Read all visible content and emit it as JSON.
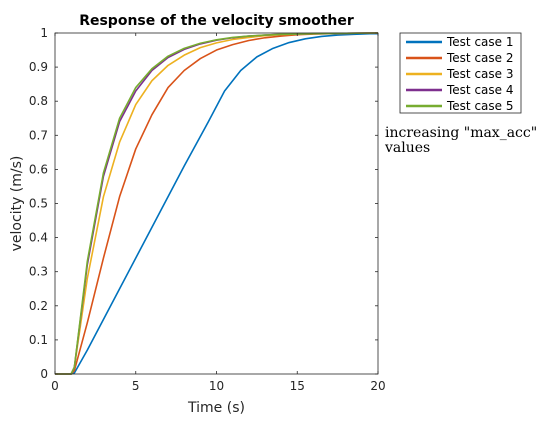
{
  "chart_data": {
    "type": "line",
    "title": "Response of the velocity smoother",
    "xlabel": "Time (s)",
    "ylabel": "velocity (m/s)",
    "xlim": [
      0,
      20
    ],
    "ylim": [
      0,
      1
    ],
    "xticks": [
      0,
      5,
      10,
      15,
      20
    ],
    "yticks": [
      0,
      0.1,
      0.2,
      0.3,
      0.4,
      0.5,
      0.6,
      0.7,
      0.8,
      0.9,
      1
    ],
    "xtick_labels": [
      "0",
      "5",
      "10",
      "15",
      "20"
    ],
    "ytick_labels": [
      "0",
      "0.1",
      "0.2",
      "0.3",
      "0.4",
      "0.5",
      "0.6",
      "0.7",
      "0.8",
      "0.9",
      "1"
    ],
    "grid": false,
    "legend_position": "outside-top-right",
    "annotation": {
      "line1": "increasing  \"max_acc\"",
      "line2": "values"
    },
    "series": [
      {
        "name": "Test case 1",
        "color": "#0072BD",
        "x": [
          0,
          1,
          1.2,
          2,
          4,
          6,
          8,
          9.5,
          10.5,
          11.5,
          12.5,
          13.5,
          14.5,
          15.5,
          16.5,
          17.5,
          18.5,
          19.5,
          20
        ],
        "y": [
          0,
          0,
          0.003,
          0.07,
          0.25,
          0.43,
          0.61,
          0.74,
          0.83,
          0.89,
          0.93,
          0.955,
          0.972,
          0.983,
          0.99,
          0.994,
          0.996,
          0.998,
          0.998
        ]
      },
      {
        "name": "Test case 2",
        "color": "#D95319",
        "x": [
          0,
          1,
          1.2,
          2,
          3,
          4,
          5,
          6,
          7,
          8,
          9,
          10,
          11,
          12,
          13,
          14,
          15,
          16,
          17,
          18,
          20
        ],
        "y": [
          0,
          0,
          0.01,
          0.15,
          0.34,
          0.52,
          0.66,
          0.76,
          0.84,
          0.89,
          0.925,
          0.95,
          0.966,
          0.978,
          0.986,
          0.991,
          0.995,
          0.997,
          0.998,
          0.999,
          1.0
        ]
      },
      {
        "name": "Test case 3",
        "color": "#EDB120",
        "x": [
          0,
          1,
          1.2,
          2,
          3,
          4,
          5,
          6,
          7,
          8,
          9,
          10,
          11,
          12,
          13,
          14,
          15,
          16,
          18,
          20
        ],
        "y": [
          0,
          0,
          0.02,
          0.28,
          0.52,
          0.68,
          0.79,
          0.86,
          0.905,
          0.935,
          0.957,
          0.971,
          0.981,
          0.987,
          0.992,
          0.995,
          0.997,
          0.998,
          0.999,
          1.0
        ]
      },
      {
        "name": "Test case 4",
        "color": "#7E2F8E",
        "x": [
          0,
          1,
          1.2,
          2,
          3,
          4,
          5,
          6,
          7,
          8,
          9,
          10,
          11,
          12,
          13,
          14,
          15,
          16,
          18,
          20
        ],
        "y": [
          0,
          0,
          0.02,
          0.32,
          0.58,
          0.74,
          0.83,
          0.89,
          0.928,
          0.952,
          0.968,
          0.979,
          0.986,
          0.991,
          0.994,
          0.996,
          0.997,
          0.998,
          0.999,
          1.0
        ]
      },
      {
        "name": "Test case 5",
        "color": "#77AC30",
        "x": [
          0,
          1,
          1.2,
          2,
          3,
          4,
          5,
          6,
          7,
          8,
          9,
          10,
          11,
          12,
          13,
          14,
          15,
          16,
          18,
          20
        ],
        "y": [
          0,
          0,
          0.02,
          0.33,
          0.59,
          0.75,
          0.84,
          0.895,
          0.932,
          0.955,
          0.97,
          0.98,
          0.987,
          0.991,
          0.994,
          0.996,
          0.997,
          0.998,
          0.999,
          1.0
        ]
      }
    ]
  }
}
